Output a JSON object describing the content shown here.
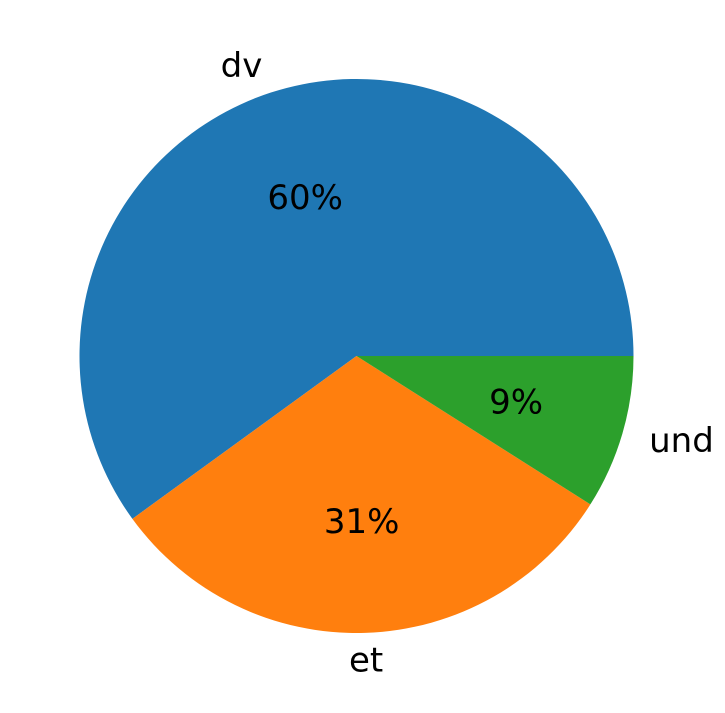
{
  "chart_data": {
    "type": "pie",
    "title": "",
    "slices": [
      {
        "label": "dv",
        "value": 60,
        "pct_label": "60%",
        "color": "#1f77b4"
      },
      {
        "label": "et",
        "value": 31,
        "pct_label": "31%",
        "color": "#ff7f0e"
      },
      {
        "label": "und",
        "value": 9,
        "pct_label": "9%",
        "color": "#2ca02c"
      }
    ],
    "start_angle_deg": 0,
    "direction": "counterclockwise",
    "legend": "none"
  }
}
